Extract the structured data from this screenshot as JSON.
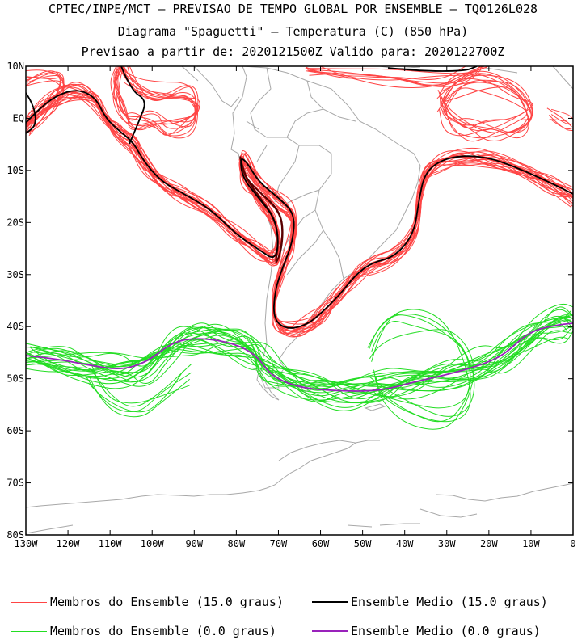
{
  "titles": {
    "line1": "CPTEC/INPE/MCT – PREVISAO DE TEMPO GLOBAL POR ENSEMBLE – TQ0126L028",
    "line2": "Diagrama \"Spaguetti\" – Temperatura (C) (850 hPa)",
    "line3": "Previsao a partir de: 2020121500Z  Valido para: 2020122700Z"
  },
  "map": {
    "lat_labels": [
      "10N",
      "EQ",
      "10S",
      "20S",
      "30S",
      "40S",
      "50S",
      "60S",
      "70S",
      "80S"
    ],
    "lon_labels": [
      "130W",
      "120W",
      "110W",
      "100W",
      "90W",
      "80W",
      "70W",
      "60W",
      "50W",
      "40W",
      "30W",
      "20W",
      "10W",
      "0"
    ],
    "colors": {
      "members_15": "#ff4444",
      "mean_15": "#000000",
      "members_0": "#22dd22",
      "mean_0": "#9922bb",
      "coast": "#a8a8a8",
      "dark_contour": "#5a0000"
    }
  },
  "legend": {
    "members_15_label": "Membros do Ensemble (15.0 graus)",
    "mean_15_label": "Ensemble Medio (15.0 graus)",
    "members_0_label": "Membros do Ensemble (0.0 graus)",
    "mean_0_label": "Ensemble Medio (0.0 graus)"
  }
}
